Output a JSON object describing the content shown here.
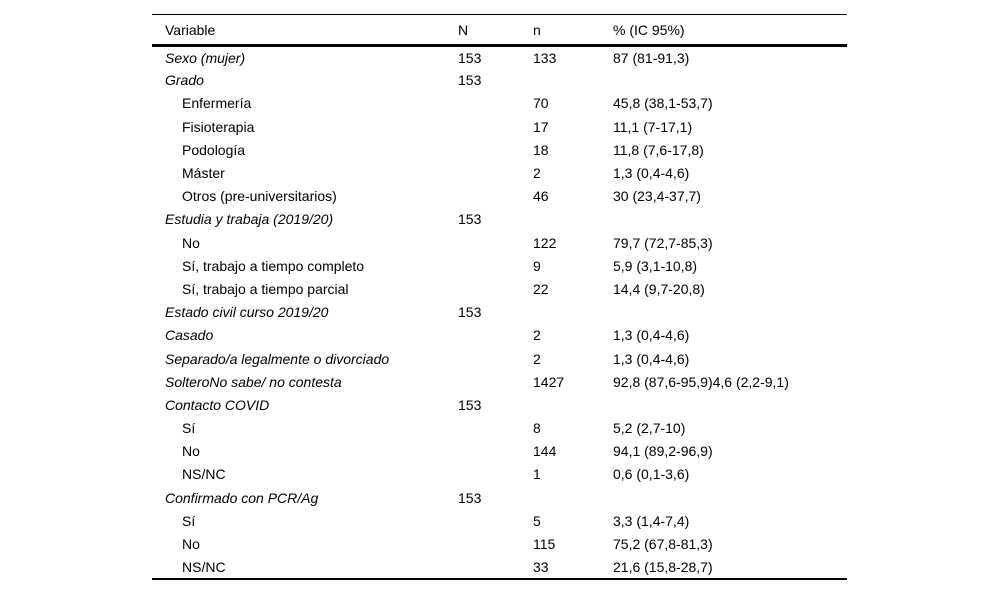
{
  "page": {
    "background_color": "#ffffff",
    "text_color": "#000000"
  },
  "table": {
    "columns": [
      "Variable",
      "N",
      "n",
      "% (IC 95%)"
    ],
    "rows": [
      {
        "variable": "Sexo (mujer)",
        "level": "main",
        "italic": true,
        "N": "153",
        "n": "133",
        "pct": "87 (81-91,3)"
      },
      {
        "variable": "Grado",
        "level": "main",
        "italic": true,
        "N": "153",
        "n": "",
        "pct": ""
      },
      {
        "variable": "Enfermería",
        "level": "sub",
        "italic": false,
        "N": "",
        "n": "70",
        "pct": "45,8 (38,1-53,7)"
      },
      {
        "variable": "Fisioterapia",
        "level": "sub",
        "italic": false,
        "N": "",
        "n": "17",
        "pct": "11,1 (7-17,1)"
      },
      {
        "variable": "Podología",
        "level": "sub",
        "italic": false,
        "N": "",
        "n": "18",
        "pct": "11,8 (7,6-17,8)"
      },
      {
        "variable": "Máster",
        "level": "sub",
        "italic": false,
        "N": "",
        "n": "2",
        "pct": "1,3 (0,4-4,6)"
      },
      {
        "variable": "Otros (pre-universitarios)",
        "level": "sub",
        "italic": false,
        "N": "",
        "n": "46",
        "pct": "30 (23,4-37,7)"
      },
      {
        "variable": "Estudia y trabaja (2019/20)",
        "level": "main",
        "italic": true,
        "N": "153",
        "n": "",
        "pct": ""
      },
      {
        "variable": "No",
        "level": "sub",
        "italic": false,
        "N": "",
        "n": "122",
        "pct": "79,7 (72,7-85,3)"
      },
      {
        "variable": "Sí, trabajo a tiempo completo",
        "level": "sub",
        "italic": false,
        "N": "",
        "n": "9",
        "pct": "5,9 (3,1-10,8)"
      },
      {
        "variable": "Sí, trabajo a tiempo parcial",
        "level": "sub",
        "italic": false,
        "N": "",
        "n": "22",
        "pct": "14,4 (9,7-20,8)"
      },
      {
        "variable": "Estado civil curso 2019/20",
        "level": "main",
        "italic": true,
        "N": "153",
        "n": "",
        "pct": ""
      },
      {
        "variable": "Casado",
        "level": "main",
        "italic": true,
        "N": "",
        "n": "2",
        "pct": "1,3 (0,4-4,6)"
      },
      {
        "variable": "Separado/a legalmente o divorciado",
        "level": "main",
        "italic": true,
        "N": "",
        "n": "2",
        "pct": "1,3 (0,4-4,6)"
      },
      {
        "variable": "SolteroNo sabe/ no contesta",
        "level": "main",
        "italic": true,
        "N": "",
        "n": "1427",
        "pct": "92,8 (87,6-95,9)4,6 (2,2-9,1)"
      },
      {
        "variable": "Contacto COVID",
        "level": "main",
        "italic": true,
        "N": "153",
        "n": "",
        "pct": ""
      },
      {
        "variable": "Sí",
        "level": "sub",
        "italic": false,
        "N": "",
        "n": "8",
        "pct": "5,2 (2,7-10)"
      },
      {
        "variable": "No",
        "level": "sub",
        "italic": false,
        "N": "",
        "n": "144",
        "pct": "94,1 (89,2-96,9)"
      },
      {
        "variable": "NS/NC",
        "level": "sub",
        "italic": false,
        "N": "",
        "n": "1",
        "pct": "0,6 (0,1-3,6)"
      },
      {
        "variable": "Confirmado con PCR/Ag",
        "level": "main",
        "italic": true,
        "N": "153",
        "n": "",
        "pct": ""
      },
      {
        "variable": "Sí",
        "level": "sub",
        "italic": false,
        "N": "",
        "n": "5",
        "pct": "3,3 (1,4-7,4)"
      },
      {
        "variable": "No",
        "level": "sub",
        "italic": false,
        "N": "",
        "n": "115",
        "pct": "75,2 (67,8-81,3)"
      },
      {
        "variable": "NS/NC",
        "level": "sub",
        "italic": false,
        "N": "",
        "n": "33",
        "pct": "21,6 (15,8-28,7)"
      }
    ]
  }
}
